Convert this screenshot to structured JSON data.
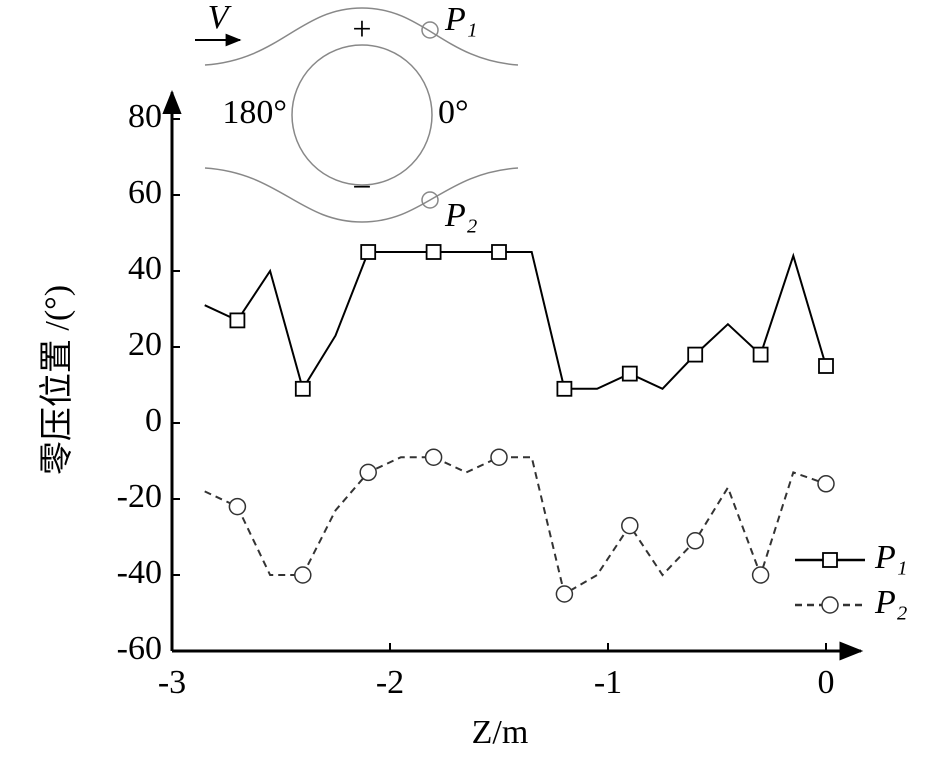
{
  "chart_data": {
    "type": "line",
    "x_label": "Z/m",
    "y_label": "零压位置 /(°)",
    "x": [
      -2.85,
      -2.7,
      -2.55,
      -2.4,
      -2.25,
      -2.1,
      -1.95,
      -1.8,
      -1.65,
      -1.5,
      -1.35,
      -1.2,
      -1.05,
      -0.9,
      -0.75,
      -0.6,
      -0.45,
      -0.3,
      -0.15,
      0
    ],
    "series": [
      {
        "name": "P₁",
        "color": "#000000",
        "dash": false,
        "marker": "square",
        "values": [
          31,
          27,
          40,
          9,
          23,
          45,
          45,
          45,
          45,
          45,
          45,
          9,
          9,
          13,
          9,
          18,
          26,
          18,
          44,
          15
        ]
      },
      {
        "name": "P₂",
        "color": "#333333",
        "dash": true,
        "marker": "circle",
        "values": [
          -18,
          -22,
          -40,
          -40,
          -23,
          -13,
          -9,
          -9,
          -13,
          -9,
          -9,
          -45,
          -40,
          -27,
          -40,
          -31,
          -17,
          -40,
          -13,
          -16
        ]
      }
    ],
    "xlim": [
      -3,
      0.16
    ],
    "ylim": [
      -60,
      87
    ],
    "xticks": [
      -3,
      -2,
      -1,
      0
    ],
    "yticks": [
      -60,
      -40,
      -20,
      0,
      20,
      40,
      60,
      80
    ],
    "annotations": {
      "velocity": "V",
      "plus": "+",
      "minus": "−",
      "left_angle": "180°",
      "right_angle": "0°",
      "p1": "P₁",
      "p2": "P₂"
    }
  }
}
